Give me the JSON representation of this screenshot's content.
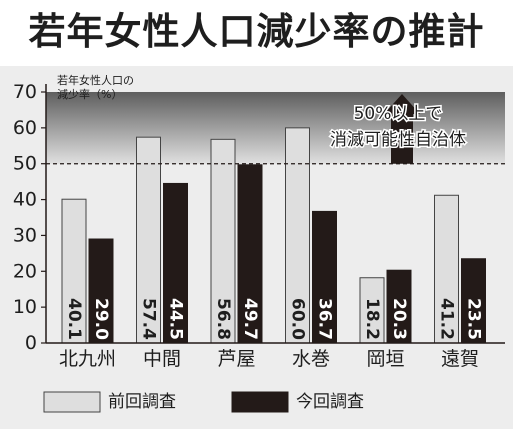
{
  "chart_data": {
    "type": "bar",
    "title": "若年女性人口減少率の推計",
    "ylabel_lines": [
      "若年女性人口の",
      "減少率（%）"
    ],
    "categories": [
      "北九州",
      "中間",
      "芦屋",
      "水巻",
      "岡垣",
      "遠賀"
    ],
    "series": [
      {
        "name": "前回調査",
        "values": [
          40.1,
          57.4,
          56.8,
          60.0,
          18.2,
          41.2
        ],
        "labels": [
          "40.1",
          "57.4",
          "56.8",
          "60.0",
          "18.2",
          "41.2"
        ]
      },
      {
        "name": "今回調査",
        "values": [
          29.0,
          44.5,
          49.7,
          36.7,
          20.3,
          23.5
        ],
        "labels": [
          "29.0",
          "44.5",
          "49.7",
          "36.7",
          "20.3",
          "23.5"
        ]
      }
    ],
    "ylim": [
      0,
      70
    ],
    "yticks": [
      0,
      10,
      20,
      30,
      40,
      50,
      60,
      70
    ],
    "grid": false,
    "legend_position": "bottom",
    "threshold": {
      "value": 50,
      "lines": [
        "50%以上で",
        "消滅可能性自治体"
      ]
    },
    "colors": {
      "previous": "#dedede",
      "current": "#231a18",
      "band_top": "#5e5e5e",
      "band_bottom": "#e0e0e0"
    }
  }
}
